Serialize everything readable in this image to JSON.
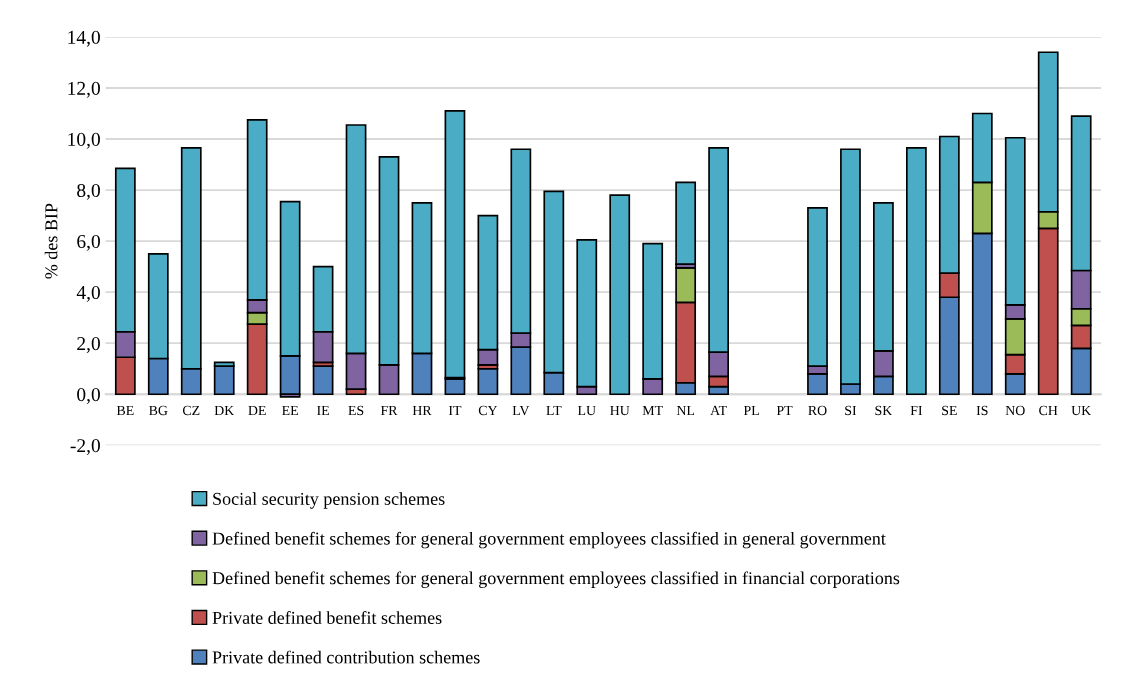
{
  "chart_data": {
    "type": "bar",
    "stacked": true,
    "ylabel": "% des BIP",
    "categories": [
      "BE",
      "BG",
      "CZ",
      "DK",
      "DE",
      "EE",
      "IE",
      "ES",
      "FR",
      "HR",
      "IT",
      "CY",
      "LV",
      "LT",
      "LU",
      "HU",
      "MT",
      "NL",
      "AT",
      "PL",
      "PT",
      "RO",
      "SI",
      "SK",
      "FI",
      "SE",
      "IS",
      "NO",
      "CH",
      "UK"
    ],
    "series": [
      {
        "name": "Private defined contribution schemes",
        "color": "#4f81bd",
        "values": [
          0,
          1.4,
          1.0,
          1.1,
          0,
          1.5,
          1.1,
          null,
          0,
          1.6,
          0.6,
          1.0,
          1.85,
          0.85,
          0,
          0,
          0,
          0.45,
          0.3,
          null,
          null,
          0.8,
          0.4,
          0.7,
          0,
          3.8,
          6.3,
          0.8,
          0,
          1.8
        ]
      },
      {
        "name": "Private defined benefit schemes",
        "color": "#c0504d",
        "values": [
          1.45,
          0,
          0,
          0,
          2.75,
          0,
          0.15,
          0.2,
          0,
          0,
          0,
          0.15,
          0,
          0,
          0,
          0,
          0,
          3.15,
          0.4,
          null,
          null,
          0,
          0,
          0,
          null,
          0.95,
          0,
          0.75,
          6.5,
          0.9
        ]
      },
      {
        "name": "Defined benefit schemes for general government employees classified in financial corporations",
        "color": "#9bbb59",
        "values": [
          0,
          0,
          0,
          0,
          0.45,
          0,
          0,
          0,
          0,
          0,
          0,
          0,
          0,
          0,
          0,
          0,
          0,
          1.35,
          0,
          null,
          null,
          0,
          0,
          0,
          0,
          0,
          2.0,
          1.4,
          0.65,
          0.65
        ]
      },
      {
        "name": "Defined benefit schemes for general government employees classified in general government",
        "color": "#8064a2",
        "values": [
          1.0,
          0,
          0,
          0,
          0.5,
          -0.1,
          1.2,
          1.4,
          1.15,
          0,
          0.05,
          0.6,
          0.55,
          0,
          0.3,
          0,
          0.6,
          0.15,
          0.95,
          null,
          null,
          0.3,
          0,
          1.0,
          0,
          0,
          0,
          0.55,
          0,
          1.5
        ]
      },
      {
        "name": "Social security pension schemes",
        "color": "#4bacc6",
        "values": [
          6.4,
          4.1,
          8.65,
          0.15,
          7.05,
          6.05,
          2.55,
          8.95,
          8.15,
          5.9,
          10.45,
          5.25,
          7.2,
          7.1,
          5.75,
          7.8,
          5.3,
          3.2,
          8.0,
          null,
          null,
          6.2,
          9.2,
          5.8,
          9.65,
          5.35,
          2.7,
          6.55,
          6.25,
          6.05
        ]
      }
    ],
    "ylim": [
      -2,
      14
    ],
    "yticks": [
      {
        "value": -2,
        "label": "-2,0"
      },
      {
        "value": 0,
        "label": "0,0"
      },
      {
        "value": 2,
        "label": "2,0"
      },
      {
        "value": 4,
        "label": "4,0"
      },
      {
        "value": 6,
        "label": "6,0"
      },
      {
        "value": 8,
        "label": "8,0"
      },
      {
        "value": 10,
        "label": "10,0"
      },
      {
        "value": 12,
        "label": "12,0"
      },
      {
        "value": 14,
        "label": "14,0"
      }
    ],
    "grid": "y",
    "legend": "bottom"
  }
}
